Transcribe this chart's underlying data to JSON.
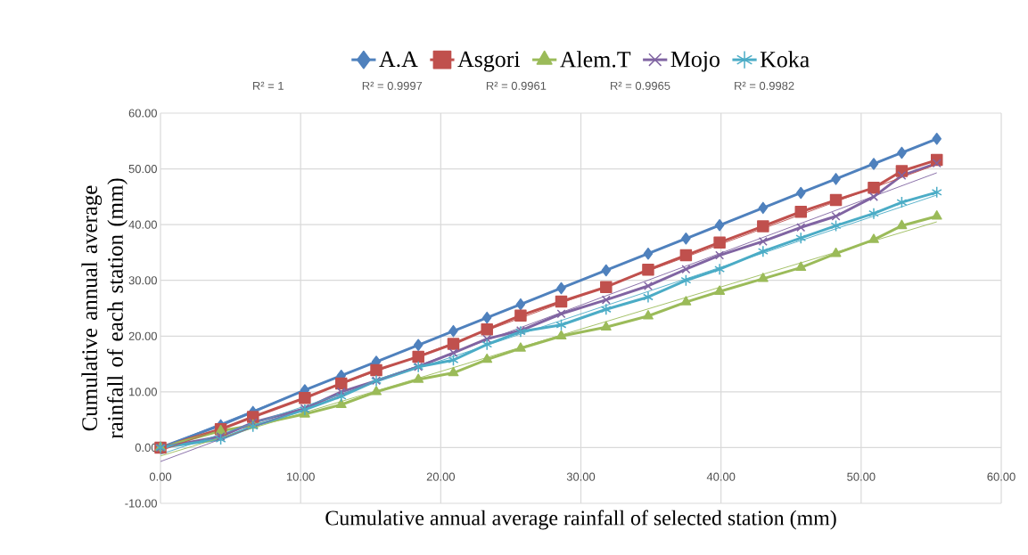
{
  "chart_data": {
    "type": "line",
    "xlabel": "Cumulative annual average rainfall of selected station (mm)",
    "ylabel": "Cumulative annual average rainfall of each station (mm)",
    "x": [
      0,
      4.3,
      6.6,
      10.3,
      12.9,
      15.4,
      18.4,
      20.9,
      23.3,
      25.7,
      28.6,
      31.8,
      34.8,
      37.5,
      39.9,
      43,
      45.7,
      48.2,
      50.9,
      52.9,
      55.4
    ],
    "xlim": [
      0,
      60
    ],
    "ylim": [
      -10,
      60
    ],
    "xticks": [
      {
        "value": 0,
        "label": "0.00"
      },
      {
        "value": 10,
        "label": "10.00"
      },
      {
        "value": 20,
        "label": "20.00"
      },
      {
        "value": 30,
        "label": "30.00"
      },
      {
        "value": 40,
        "label": "40.00"
      },
      {
        "value": 50,
        "label": "50.00"
      },
      {
        "value": 60,
        "label": "60.00"
      }
    ],
    "yticks": [
      {
        "value": -10,
        "label": "-10.00"
      },
      {
        "value": 0,
        "label": "0.00"
      },
      {
        "value": 10,
        "label": "10.00"
      },
      {
        "value": 20,
        "label": "20.00"
      },
      {
        "value": 30,
        "label": "30.00"
      },
      {
        "value": 40,
        "label": "40.00"
      },
      {
        "value": 50,
        "label": "50.00"
      },
      {
        "value": 60,
        "label": "60.00"
      }
    ],
    "grid": true,
    "legend": "top",
    "annotations": [
      "R² = 1",
      "R² = 0.9997",
      "R² = 0.9961",
      "R² = 0.9965",
      "R² = 0.9982"
    ],
    "series": [
      {
        "name": "A.A",
        "color": "#4f81bd",
        "marker": "diamond",
        "values": [
          0,
          4.0,
          6.4,
          10.3,
          12.9,
          15.4,
          18.4,
          20.9,
          23.3,
          25.7,
          28.6,
          31.8,
          34.8,
          37.5,
          39.9,
          43,
          45.7,
          48.2,
          50.9,
          52.9,
          55.4
        ]
      },
      {
        "name": "Asgori",
        "color": "#c0504d",
        "marker": "square",
        "values": [
          0,
          3.3,
          5.5,
          8.9,
          11.5,
          13.9,
          16.3,
          18.6,
          21.2,
          23.7,
          26.2,
          28.8,
          31.9,
          34.5,
          36.8,
          39.7,
          42.3,
          44.4,
          46.6,
          49.6,
          51.6
        ]
      },
      {
        "name": "Alem.T",
        "color": "#9bbb59",
        "marker": "triangle",
        "values": [
          0,
          3.0,
          4.0,
          6.0,
          7.7,
          10.0,
          12.2,
          13.4,
          15.8,
          17.8,
          20.0,
          21.6,
          23.6,
          26.1,
          28.0,
          30.3,
          32.3,
          34.8,
          37.3,
          39.8,
          41.5
        ]
      },
      {
        "name": "Mojo",
        "color": "#8064a2",
        "marker": "cross",
        "values": [
          0,
          2.0,
          4.5,
          7.0,
          10.0,
          12.0,
          14.5,
          17.0,
          19.5,
          21.0,
          24.0,
          26.5,
          29.0,
          32.0,
          34.5,
          37.0,
          39.5,
          41.5,
          45.0,
          48.8,
          51.0
        ]
      },
      {
        "name": "Koka",
        "color": "#4bacc6",
        "marker": "cross",
        "values": [
          0,
          1.5,
          3.8,
          6.8,
          9.2,
          12.0,
          14.5,
          15.7,
          18.5,
          20.8,
          22.0,
          24.8,
          27.0,
          30.0,
          32.0,
          35.2,
          37.6,
          39.8,
          42.0,
          44.0,
          45.8
        ]
      },
      {
        "type": "line",
        "color": "#4f81bd",
        "marker": "none",
        "values": [
          0,
          null,
          null,
          null,
          null,
          null,
          null,
          null,
          null,
          null,
          null,
          null,
          null,
          null,
          null,
          null,
          null,
          null,
          null,
          null,
          55.4
        ]
      },
      {
        "type": "line",
        "color": "#c0504d",
        "marker": "none",
        "values": [
          -0.6,
          null,
          null,
          null,
          null,
          null,
          null,
          null,
          null,
          null,
          null,
          null,
          null,
          null,
          null,
          null,
          null,
          null,
          null,
          null,
          50.8
        ]
      },
      {
        "type": "line",
        "color": "#9bbb59",
        "marker": "none",
        "values": [
          -1.5,
          null,
          null,
          null,
          null,
          null,
          null,
          null,
          null,
          null,
          null,
          null,
          null,
          null,
          null,
          null,
          null,
          null,
          null,
          null,
          40.5
        ]
      },
      {
        "type": "line",
        "color": "#8064a2",
        "marker": "none",
        "values": [
          -2.5,
          null,
          null,
          null,
          null,
          null,
          null,
          null,
          null,
          null,
          null,
          null,
          null,
          null,
          null,
          null,
          null,
          null,
          null,
          null,
          49.3
        ]
      },
      {
        "type": "line",
        "color": "#4bacc6",
        "marker": "none",
        "values": [
          -1.2,
          null,
          null,
          null,
          null,
          null,
          null,
          null,
          null,
          null,
          null,
          null,
          null,
          null,
          null,
          null,
          null,
          null,
          null,
          null,
          45.3
        ]
      }
    ]
  }
}
